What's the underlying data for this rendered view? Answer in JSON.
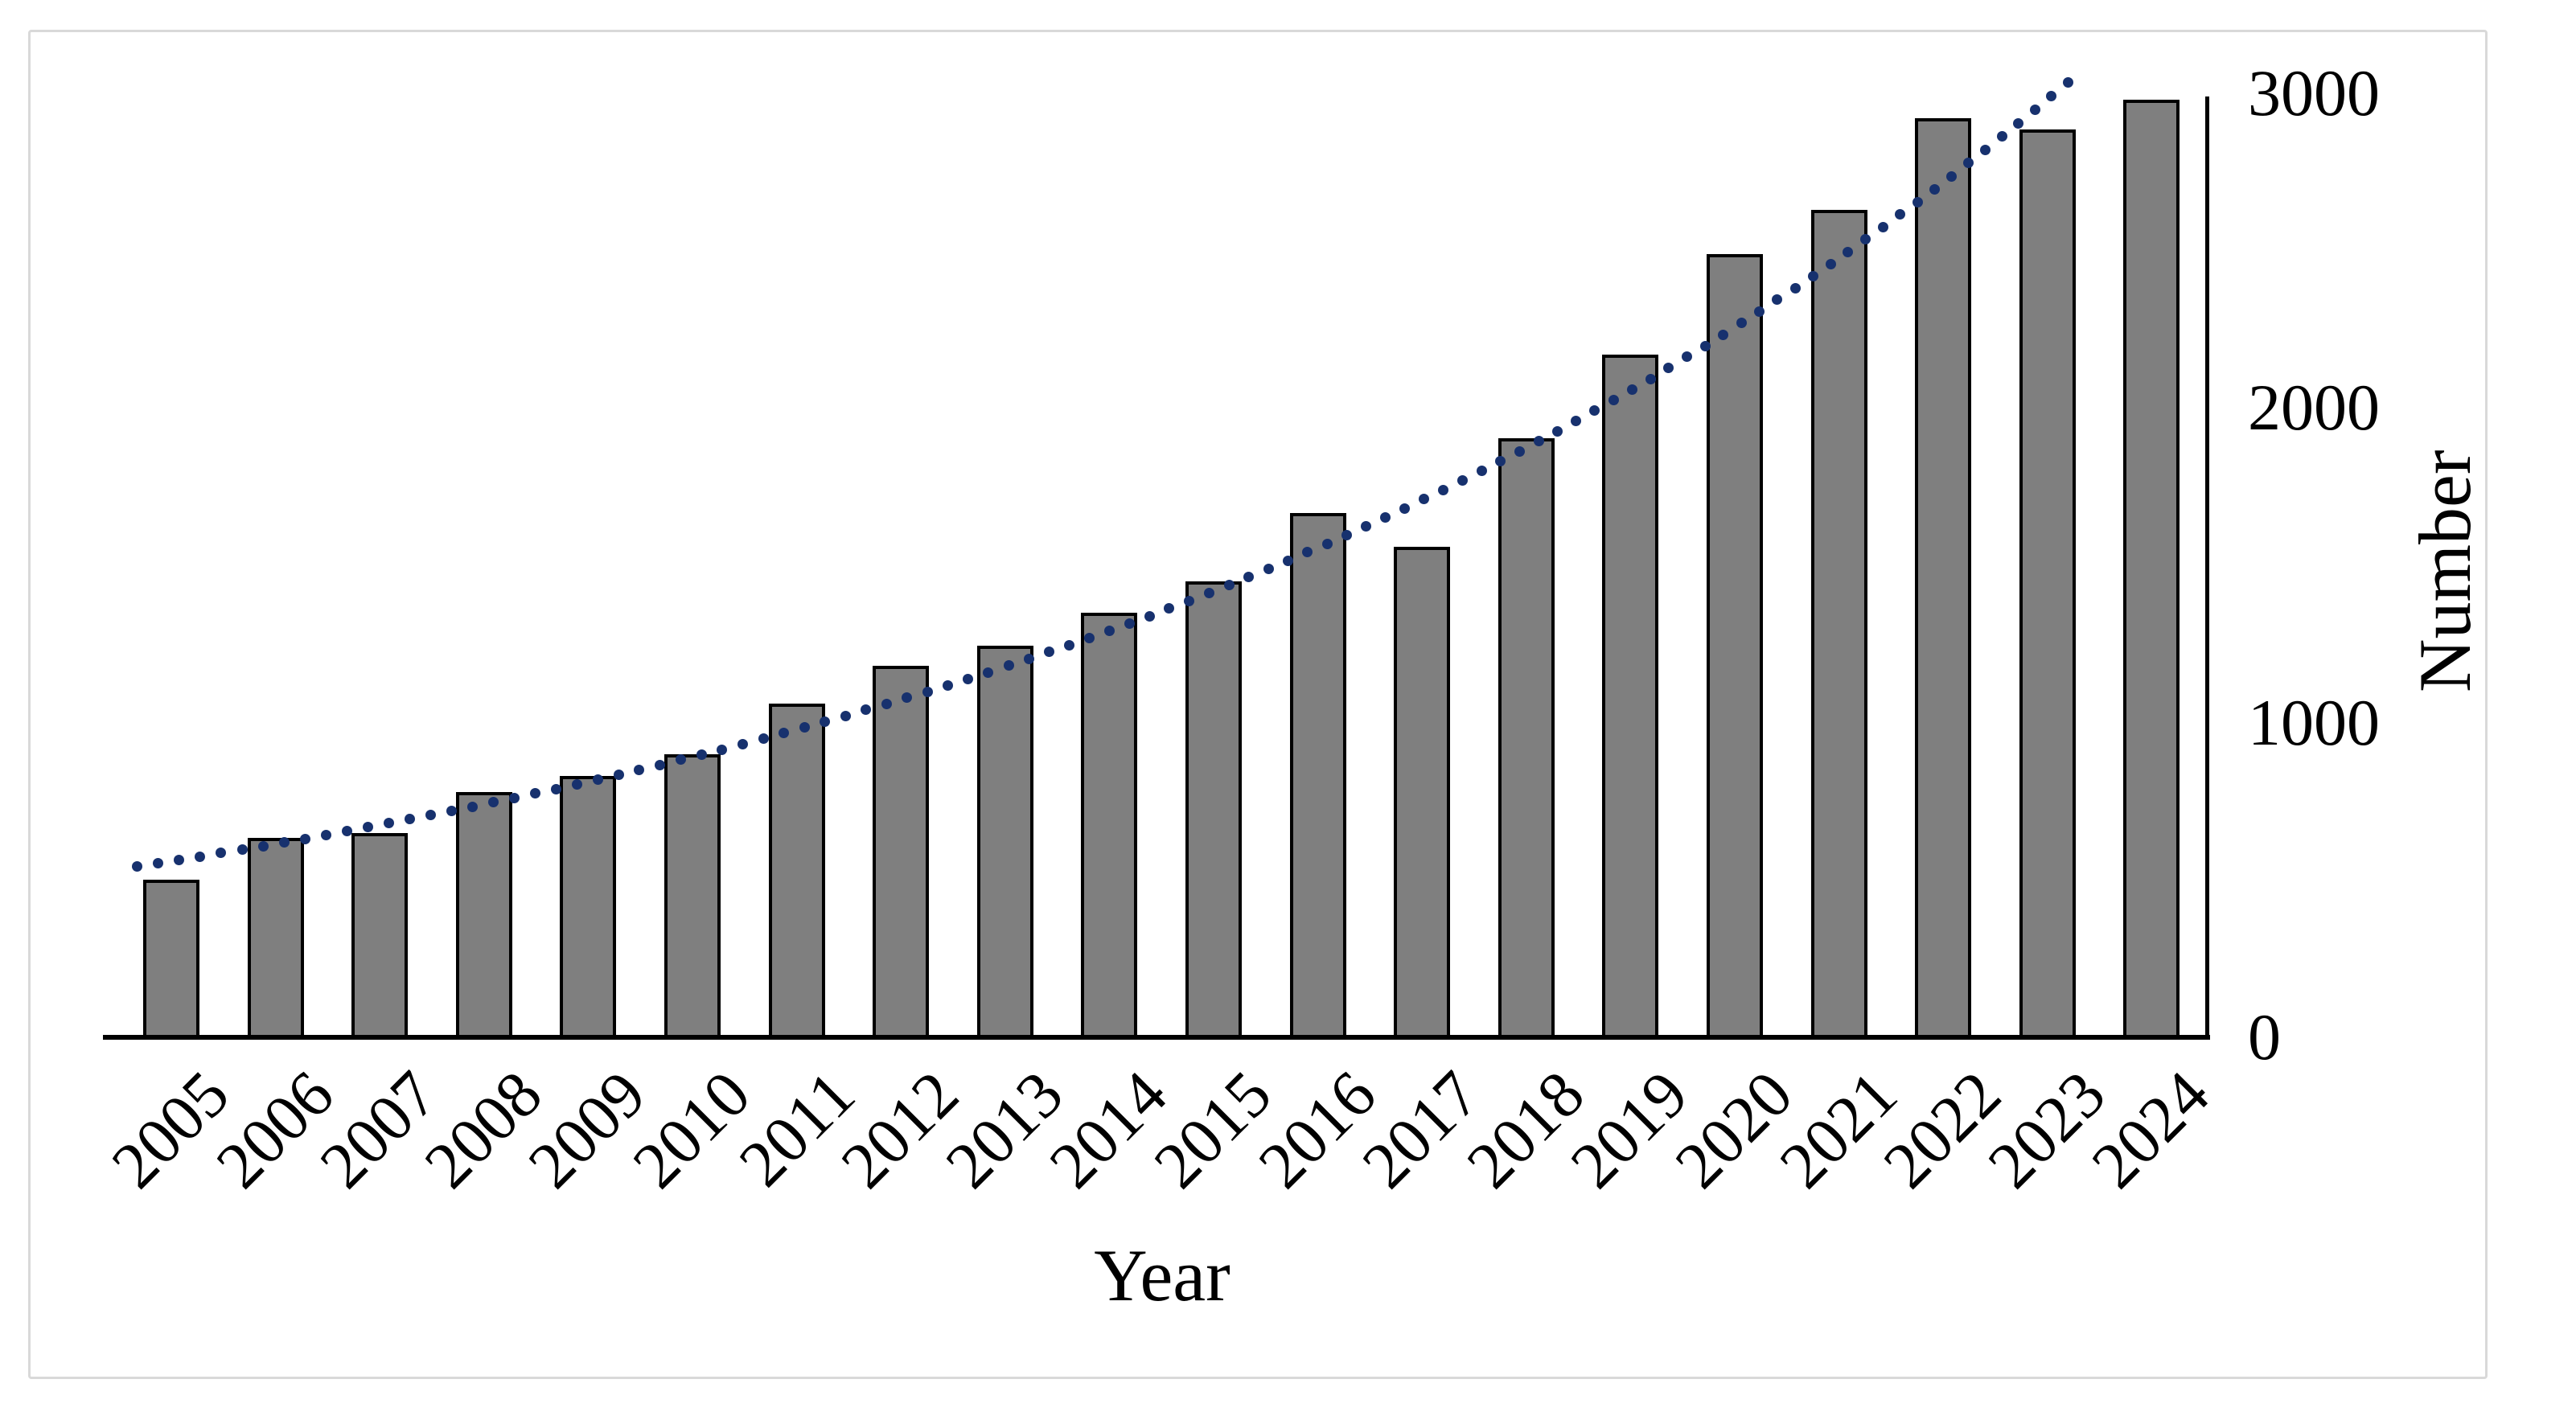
{
  "chart_data": {
    "type": "bar",
    "title": "",
    "categories": [
      "2005",
      "2006",
      "2007",
      "2008",
      "2009",
      "2010",
      "2011",
      "2012",
      "2013",
      "2014",
      "2015",
      "2016",
      "2017",
      "2018",
      "2019",
      "2020",
      "2021",
      "2022",
      "2023",
      "2024"
    ],
    "values": [
      500,
      635,
      650,
      780,
      830,
      900,
      1060,
      1180,
      1245,
      1350,
      1450,
      1665,
      1560,
      1905,
      2170,
      2490,
      2630,
      2920,
      2885,
      2980
    ],
    "xlabel": "Year",
    "ylabel": "Number",
    "ylim": [
      0,
      3000
    ],
    "y_ticks": [
      0,
      1000,
      2000,
      3000
    ],
    "y_tick_labels": [
      "0",
      "1000",
      "2000",
      "3000"
    ],
    "grid": false,
    "legend_position": "none",
    "bar_color": "#7f7f7f",
    "bar_border_color": "#000000",
    "axis_color": "#000000",
    "figure_border_color": "#d9d9d9",
    "background_color": "#ffffff",
    "trendline": {
      "type": "exponential",
      "style": "dotted",
      "color": "#17316e",
      "a": 560,
      "b": 0.0929,
      "t_start": -0.33,
      "t_end": 18.2
    }
  }
}
